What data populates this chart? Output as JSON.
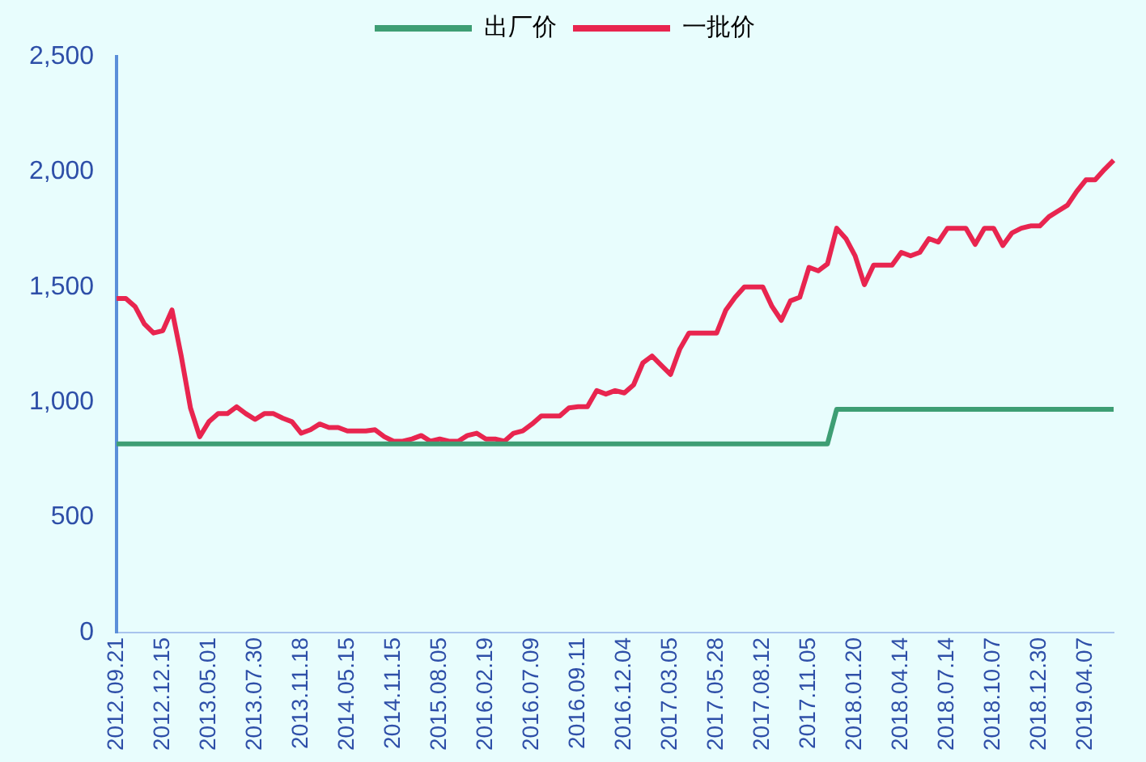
{
  "chart_data": {
    "type": "line",
    "categories": [
      "2012.09.21",
      null,
      null,
      null,
      null,
      "2012.12.15",
      null,
      null,
      null,
      null,
      "2013.05.01",
      null,
      null,
      null,
      null,
      "2013.07.30",
      null,
      null,
      null,
      null,
      "2013.11.18",
      null,
      null,
      null,
      null,
      "2014.05.15",
      null,
      null,
      null,
      null,
      "2014.11.15",
      null,
      null,
      null,
      null,
      "2015.08.05",
      null,
      null,
      null,
      null,
      "2016.02.19",
      null,
      null,
      null,
      null,
      "2016.07.09",
      null,
      null,
      null,
      null,
      "2016.09.11",
      null,
      null,
      null,
      null,
      "2016.12.04",
      null,
      null,
      null,
      null,
      "2017.03.05",
      null,
      null,
      null,
      null,
      "2017.05.28",
      null,
      null,
      null,
      null,
      "2017.08.12",
      null,
      null,
      null,
      null,
      "2017.11.05",
      null,
      null,
      null,
      null,
      "2018.01.20",
      null,
      null,
      null,
      null,
      "2018.04.14",
      null,
      null,
      null,
      null,
      "2018.07.14",
      null,
      null,
      null,
      null,
      "2018.10.07",
      null,
      null,
      null,
      null,
      "2018.12.30",
      null,
      null,
      null,
      null,
      "2019.04.07",
      null,
      null,
      null
    ],
    "series": [
      {
        "name": "出厂价",
        "color": "#3e9e74",
        "values": [
          819,
          819,
          819,
          819,
          819,
          819,
          819,
          819,
          819,
          819,
          819,
          819,
          819,
          819,
          819,
          819,
          819,
          819,
          819,
          819,
          819,
          819,
          819,
          819,
          819,
          819,
          819,
          819,
          819,
          819,
          819,
          819,
          819,
          819,
          819,
          819,
          819,
          819,
          819,
          819,
          819,
          819,
          819,
          819,
          819,
          819,
          819,
          819,
          819,
          819,
          819,
          819,
          819,
          819,
          819,
          819,
          819,
          819,
          819,
          819,
          819,
          819,
          819,
          819,
          819,
          819,
          819,
          819,
          819,
          819,
          819,
          819,
          819,
          819,
          819,
          819,
          819,
          819,
          969,
          969,
          969,
          969,
          969,
          969,
          969,
          969,
          969,
          969,
          969,
          969,
          969,
          969,
          969,
          969,
          969,
          969,
          969,
          969,
          969,
          969,
          969,
          969,
          969,
          969,
          969,
          969,
          969,
          969,
          969
        ]
      },
      {
        "name": "一批价",
        "color": "#e8254f",
        "values": [
          1450,
          1450,
          1415,
          1340,
          1300,
          1310,
          1400,
          1200,
          975,
          850,
          915,
          950,
          950,
          980,
          950,
          925,
          950,
          950,
          930,
          915,
          865,
          880,
          905,
          890,
          890,
          875,
          875,
          875,
          880,
          850,
          830,
          830,
          840,
          855,
          830,
          840,
          830,
          830,
          855,
          865,
          840,
          840,
          830,
          865,
          875,
          905,
          940,
          940,
          940,
          975,
          980,
          980,
          1050,
          1035,
          1050,
          1040,
          1075,
          1170,
          1200,
          1160,
          1120,
          1230,
          1300,
          1300,
          1300,
          1300,
          1400,
          1455,
          1500,
          1500,
          1500,
          1415,
          1355,
          1440,
          1455,
          1585,
          1570,
          1600,
          1755,
          1710,
          1635,
          1510,
          1595,
          1595,
          1595,
          1650,
          1635,
          1650,
          1710,
          1695,
          1755,
          1755,
          1755,
          1685,
          1755,
          1755,
          1680,
          1735,
          1755,
          1765,
          1765,
          1805,
          1830,
          1855,
          1915,
          1965,
          1965,
          2010,
          2050
        ]
      }
    ],
    "ylim": [
      0,
      2500
    ],
    "yticks": [
      {
        "value": 0,
        "label": "0"
      },
      {
        "value": 500,
        "label": "500"
      },
      {
        "value": 1000,
        "label": "1,000"
      },
      {
        "value": 1500,
        "label": "1,500"
      },
      {
        "value": 2000,
        "label": "2,000"
      },
      {
        "value": 2500,
        "label": "2,500"
      }
    ],
    "grid": false,
    "legend": "top",
    "marker": "none",
    "line_style": "solid"
  }
}
